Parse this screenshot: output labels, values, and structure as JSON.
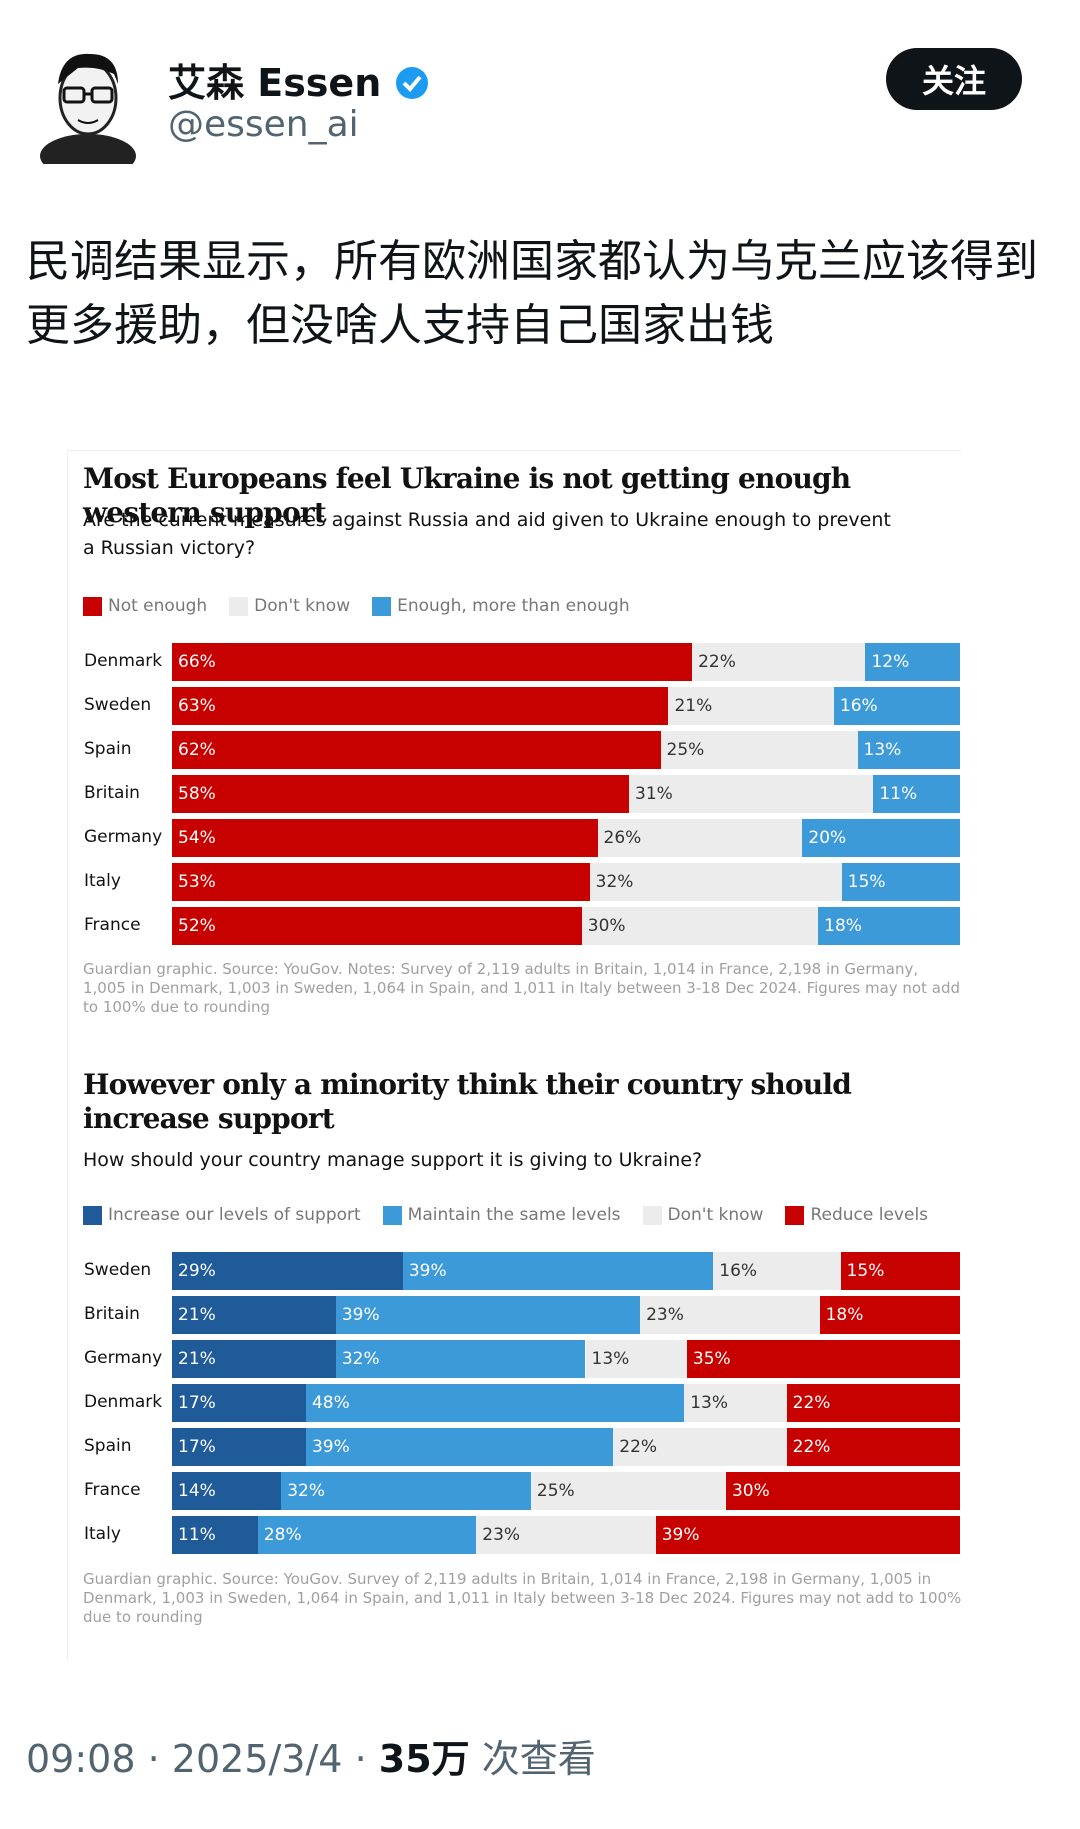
{
  "post": {
    "name": "艾森 Essen",
    "handle": "@essen_ai",
    "follow": "关注",
    "text": "民调结果显示，所有欧洲国家都认为乌克兰应该得到更多援助，但没啥人支持自己国家出钱",
    "time": "09:08",
    "separator": "·",
    "date": "2025/3/4",
    "views": "35万",
    "views_label": "次查看"
  },
  "chart_data": [
    {
      "type": "stacked-bar-horizontal",
      "title": "Most Europeans feel Ukraine is not getting enough western support",
      "subtitle": "Are the current measures against Russia and aid given to Ukraine enough to prevent a Russian victory?",
      "categories": [
        "Denmark",
        "Sweden",
        "Spain",
        "Britain",
        "Germany",
        "Italy",
        "France"
      ],
      "series": [
        {
          "name": "Not enough",
          "color": "#c70000",
          "values": [
            66,
            63,
            62,
            58,
            54,
            53,
            52
          ],
          "value_labels": [
            "66%",
            "63%",
            "62%",
            "58%",
            "54%",
            "53%",
            "52%"
          ]
        },
        {
          "name": "Don't know",
          "color": "#ececec",
          "values": [
            22,
            21,
            25,
            31,
            26,
            32,
            30
          ],
          "value_labels": [
            "22%",
            "21%",
            "25%",
            "31%",
            "26%",
            "32%",
            "30%"
          ]
        },
        {
          "name": "Enough, more than enough",
          "color": "#3d9ad9",
          "values": [
            12,
            16,
            13,
            11,
            20,
            15,
            18
          ],
          "value_labels": [
            "12%",
            "16%",
            "13%",
            "11%",
            "20%",
            "15%",
            "18%"
          ]
        }
      ],
      "note": "Guardian graphic. Source: YouGov. Notes: Survey of 2,119 adults in Britain, 1,014 in France, 2,198 in Germany, 1,005 in Denmark, 1,003 in Sweden, 1,064 in Spain, and 1,011 in Italy between 3-18 Dec 2024. Figures may not add to 100% due to rounding"
    },
    {
      "type": "stacked-bar-horizontal",
      "title": "However only a minority think their country should increase support",
      "subtitle": "How should your country manage support it is giving to Ukraine?",
      "categories": [
        "Sweden",
        "Britain",
        "Germany",
        "Denmark",
        "Spain",
        "France",
        "Italy"
      ],
      "series": [
        {
          "name": "Increase our levels of support",
          "color": "#1f5b98",
          "values": [
            29,
            21,
            21,
            17,
            17,
            14,
            11
          ],
          "value_labels": [
            "29%",
            "21%",
            "21%",
            "17%",
            "17%",
            "14%",
            "11%"
          ]
        },
        {
          "name": "Maintain the same levels",
          "color": "#3d9ad9",
          "values": [
            39,
            39,
            32,
            48,
            39,
            32,
            28
          ],
          "value_labels": [
            "39%",
            "39%",
            "32%",
            "48%",
            "39%",
            "32%",
            "28%"
          ]
        },
        {
          "name": "Don't know",
          "color": "#ececec",
          "values": [
            16,
            23,
            13,
            13,
            22,
            25,
            23
          ],
          "value_labels": [
            "16%",
            "23%",
            "13%",
            "13%",
            "22%",
            "25%",
            "23%"
          ]
        },
        {
          "name": "Reduce levels",
          "color": "#c70000",
          "values": [
            15,
            18,
            35,
            22,
            22,
            30,
            39
          ],
          "value_labels": [
            "15%",
            "18%",
            "35%",
            "22%",
            "22%",
            "30%",
            "39%"
          ]
        }
      ],
      "note": "Guardian graphic. Source: YouGov. Survey of 2,119 adults in Britain, 1,014 in France, 2,198 in Germany, 1,005 in Denmark, 1,003 in Sweden, 1,064 in Spain, and 1,011 in Italy between 3-18 Dec 2024. Figures may not add to 100% due to rounding"
    }
  ]
}
